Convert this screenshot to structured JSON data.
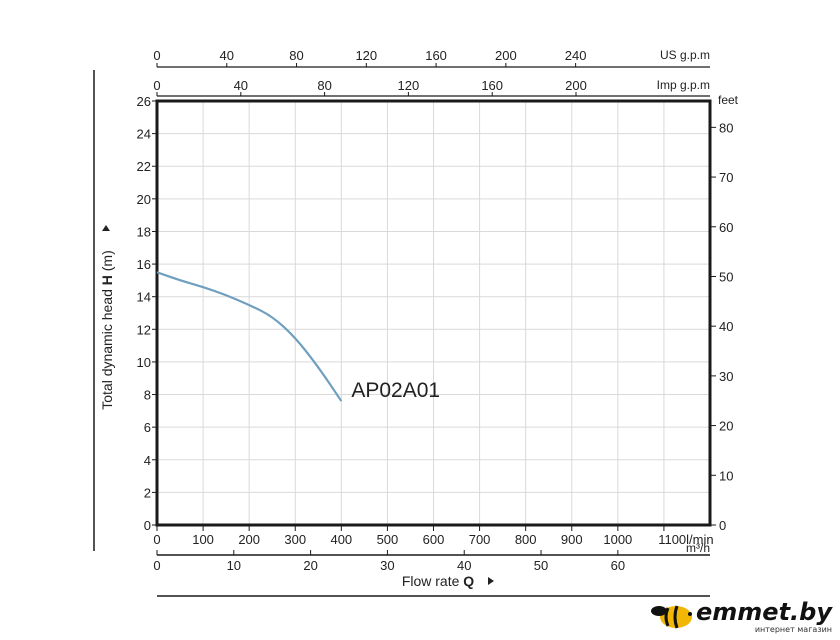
{
  "chart_data": {
    "type": "line",
    "series": [
      {
        "name": "AP02A01",
        "x": [
          0,
          50,
          100,
          150,
          200,
          250,
          300,
          350,
          400
        ],
        "y": [
          15.5,
          15.0,
          14.6,
          14.1,
          13.5,
          12.8,
          11.5,
          9.7,
          7.6
        ]
      }
    ],
    "xlim": [
      0,
      1200
    ],
    "ylim": [
      0,
      26
    ],
    "x_ticks": [
      "0",
      "100",
      "200",
      "300",
      "400",
      "500",
      "600",
      "700",
      "800",
      "900",
      "1000",
      "1100"
    ],
    "x_unit": "l/min",
    "y_ticks": [
      "0",
      "2",
      "4",
      "6",
      "8",
      "10",
      "12",
      "14",
      "16",
      "18",
      "20",
      "22",
      "24",
      "26"
    ],
    "ylabel_prefix": "Total dynamic head ",
    "ylabel_bold": "H",
    "ylabel_suffix": " (m)",
    "xlabel_prefix": "Flow rate ",
    "xlabel_bold": "Q",
    "secondary_axes": {
      "us_gpm": {
        "unit": "US g.p.m",
        "ticks": [
          0,
          40,
          80,
          120,
          160,
          200,
          240
        ],
        "lpm_per_unit": 3.785
      },
      "imp_gpm": {
        "unit": "Imp g.p.m",
        "ticks": [
          0,
          40,
          80,
          120,
          160,
          200
        ],
        "lpm_per_unit": 4.546
      },
      "m3h": {
        "unit": "m³/h",
        "ticks": [
          0,
          10,
          20,
          30,
          40,
          50,
          60
        ],
        "lpm_per_unit": 16.667
      },
      "feet": {
        "unit": "feet",
        "ticks": [
          0,
          10,
          20,
          30,
          40,
          50,
          60,
          70,
          80
        ],
        "m_per_unit": 0.3048
      }
    },
    "grid": true,
    "colors": {
      "series": "#6f9fbe",
      "grid": "#d9d9d9",
      "frame": "#1a1a1a"
    }
  },
  "brand": {
    "name": "emmet.by",
    "tagline": "интернет магазин"
  }
}
